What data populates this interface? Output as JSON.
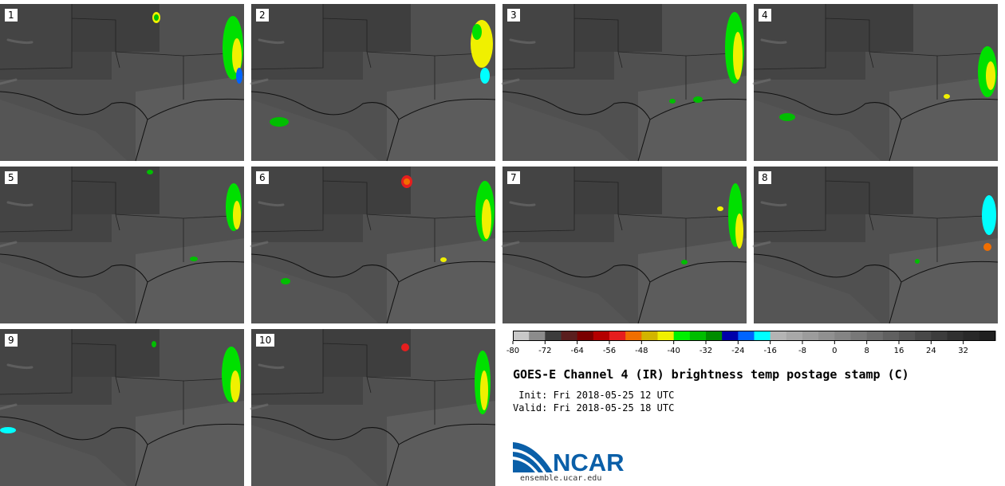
{
  "panels": [
    {
      "label": "1"
    },
    {
      "label": "2"
    },
    {
      "label": "3"
    },
    {
      "label": "4"
    },
    {
      "label": "5"
    },
    {
      "label": "6"
    },
    {
      "label": "7"
    },
    {
      "label": "8"
    },
    {
      "label": "9"
    },
    {
      "label": "10"
    }
  ],
  "colorbar": {
    "ticks": [
      "-80",
      "-72",
      "-64",
      "-56",
      "-48",
      "-40",
      "-32",
      "-24",
      "-16",
      "-8",
      "0",
      "8",
      "16",
      "24",
      "32"
    ],
    "tick_values": [
      -80,
      -72,
      -64,
      -56,
      -48,
      -40,
      -32,
      -24,
      -16,
      -8,
      0,
      8,
      16,
      24,
      32
    ],
    "min": -80,
    "max": 40,
    "colors": [
      "#c8c8c8",
      "#8c8c8c",
      "#3c3c3c",
      "#5a1e1e",
      "#7a0000",
      "#b40000",
      "#e61e1e",
      "#f06e00",
      "#d2b400",
      "#f0f000",
      "#00f000",
      "#00be00",
      "#008c00",
      "#0000aa",
      "#0064ff",
      "#00ffff",
      "#b4b4b4",
      "#a8a8a8",
      "#9c9c9c",
      "#909090",
      "#848484",
      "#787878",
      "#6c6c6c",
      "#606060",
      "#545454",
      "#484848",
      "#3c3c3c",
      "#303030",
      "#282828",
      "#202020"
    ]
  },
  "title": "GOES-E Channel 4 (IR) brightness temp postage stamp (C)",
  "init": " Init: Fri 2018-05-25 12 UTC",
  "valid": "Valid: Fri 2018-05-25 18 UTC",
  "logo": {
    "name": "NCAR",
    "url": "ensemble.ucar.edu"
  }
}
